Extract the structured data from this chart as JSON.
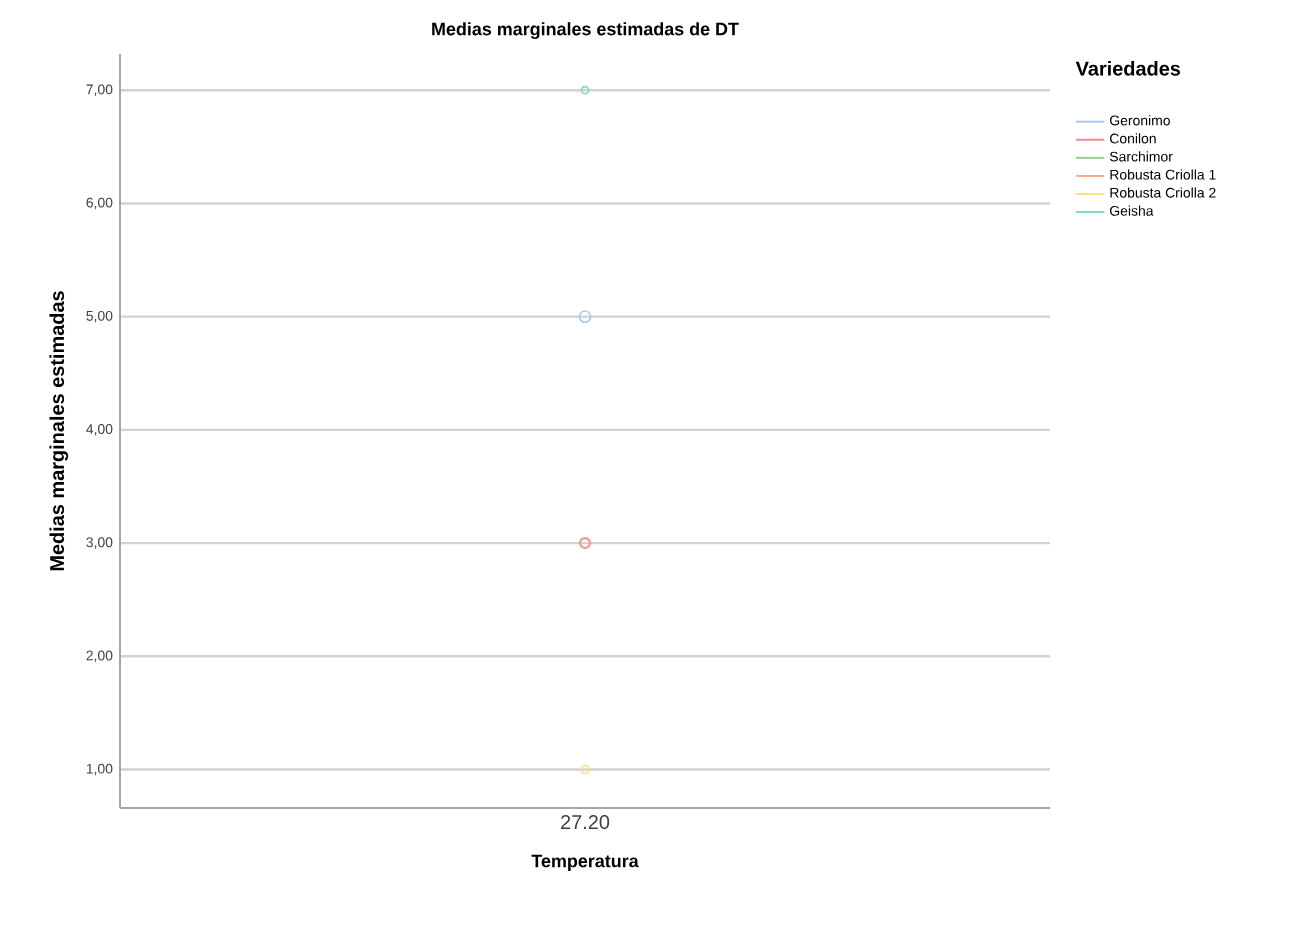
{
  "chart_data": {
    "type": "line",
    "title": "Medias marginales estimadas de DT",
    "xlabel": "Temperatura",
    "ylabel": "Medias marginales estimadas",
    "legend_title": "Variedades",
    "categories": [
      "27.20"
    ],
    "series": [
      {
        "name": "Geronimo",
        "color": "#a6c8f0",
        "values": [
          5
        ]
      },
      {
        "name": "Conilon",
        "color": "#ee8592",
        "values": [
          3
        ]
      },
      {
        "name": "Sarchimor",
        "color": "#93cf93",
        "values": [
          null
        ]
      },
      {
        "name": "Robusta Criolla 1",
        "color": "#f5ab88",
        "values": [
          3
        ]
      },
      {
        "name": "Robusta Criolla 2",
        "color": "#f3e57a",
        "values": [
          1
        ]
      },
      {
        "name": "Geisha",
        "color": "#7fd8cf",
        "values": [
          7
        ]
      }
    ],
    "ylim": [
      0.66,
      7.32
    ],
    "yticks": [
      {
        "value": 1,
        "label": "1,00"
      },
      {
        "value": 2,
        "label": "2,00"
      },
      {
        "value": 3,
        "label": "3,00"
      },
      {
        "value": 4,
        "label": "4,00"
      },
      {
        "value": 5,
        "label": "5,00"
      },
      {
        "value": 6,
        "label": "6,00"
      },
      {
        "value": 7,
        "label": "7,00"
      }
    ],
    "grid": "y",
    "legend": "right",
    "marker": "circle"
  }
}
